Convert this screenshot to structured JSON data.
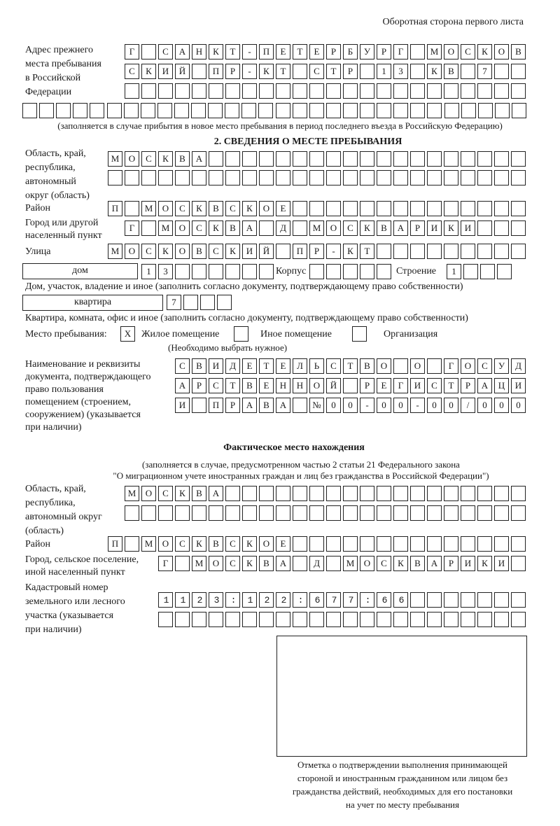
{
  "header": {
    "page_side": "Оборотная сторона первого листа"
  },
  "previous_address": {
    "label": "Адрес прежнего\nместа пребывания\nв Российской\nФедерации",
    "rows": [
      "Г САНКТ-ПЕТЕРБУРГ МОСКОВ",
      "СКИЙ ПР-КТ СТР 13 КВ 7",
      "",
      ""
    ],
    "note": "(заполняется в случае прибытия в новое место пребывания в период последнего въезда в Российскую Федерацию)"
  },
  "section2": {
    "title": "2. СВЕДЕНИЯ О МЕСТЕ ПРЕБЫВАНИЯ",
    "region_label": "Область, край,\nреспублика,\nавтономный\nокруг (область)",
    "region_rows": [
      "МОСКВА",
      ""
    ],
    "district_label": "Район",
    "district": "П МОСКВСКОЕ",
    "city_label": "Город или другой\nнаселенный пункт",
    "city": "Г МОСКВА Д МОСКВАРИКИ",
    "street_label": "Улица",
    "street": "МОСКОВСКИЙ ПР-КТ",
    "house_type": "дом",
    "house": "13",
    "building_label": "Корпус",
    "building": "",
    "structure_label": "Строение",
    "structure": "1",
    "house_note": "Дом, участок, владение и иное (заполнить согласно документу, подтверждающему право собственности)",
    "apartment_type": "квартира",
    "apartment": "7",
    "apartment_note": "Квартира, комната, офис и иное (заполнить согласно документу, подтверждающему право собственности)",
    "stay_place_label": "Место пребывания:",
    "stay_options": [
      {
        "label": "Жилое помещение",
        "mark": "Х",
        "checked": true
      },
      {
        "label": "Иное помещение",
        "mark": "",
        "checked": false
      },
      {
        "label": "Организация",
        "mark": "",
        "checked": false
      }
    ],
    "stay_note": "(Необходимо выбрать нужное)",
    "document_label": "Наименование и реквизиты\nдокумента, подтверждающего\nправо пользования\nпомещением (строением,\nсооружением) (указывается\nпри наличии)",
    "document_rows": [
      "СВИДЕТЕЛЬСТВО О ГОСУД",
      "АРСТВЕННОЙ РЕГИСТРАЦИ",
      "И ПРАВА №00-00-00/000"
    ]
  },
  "actual": {
    "title": "Фактическое место нахождения",
    "note1": "(заполняется в случае, предусмотренном частью 2 статьи 21 Федерального закона",
    "note2": "\"О миграционном учете иностранных граждан и лиц без гражданства в Российской Федерации\")",
    "region_label": "Область, край,\nреспублика,\nавтономный округ\n(область)",
    "region_rows": [
      "МОСКВА",
      ""
    ],
    "district_label": "Район",
    "district": "П МОСКВСКОЕ",
    "city_label": "Город, сельское поселение,\nиной населенный пункт",
    "city": "Г МОСКВА Д МОСКВАРИКИ",
    "cadastral_label": "Кадастровый номер\nземельного или лесного\nучастка (указывается\nпри наличии)",
    "cadastral_rows": [
      "1123:122:677:66",
      ""
    ]
  },
  "stamp": {
    "caption": "Отметка о подтверждении выполнения принимающей\nстороной и иностранным гражданином или лицом без\nгражданства действий, необходимых для его постановки\nна учет по месту пребывания"
  }
}
